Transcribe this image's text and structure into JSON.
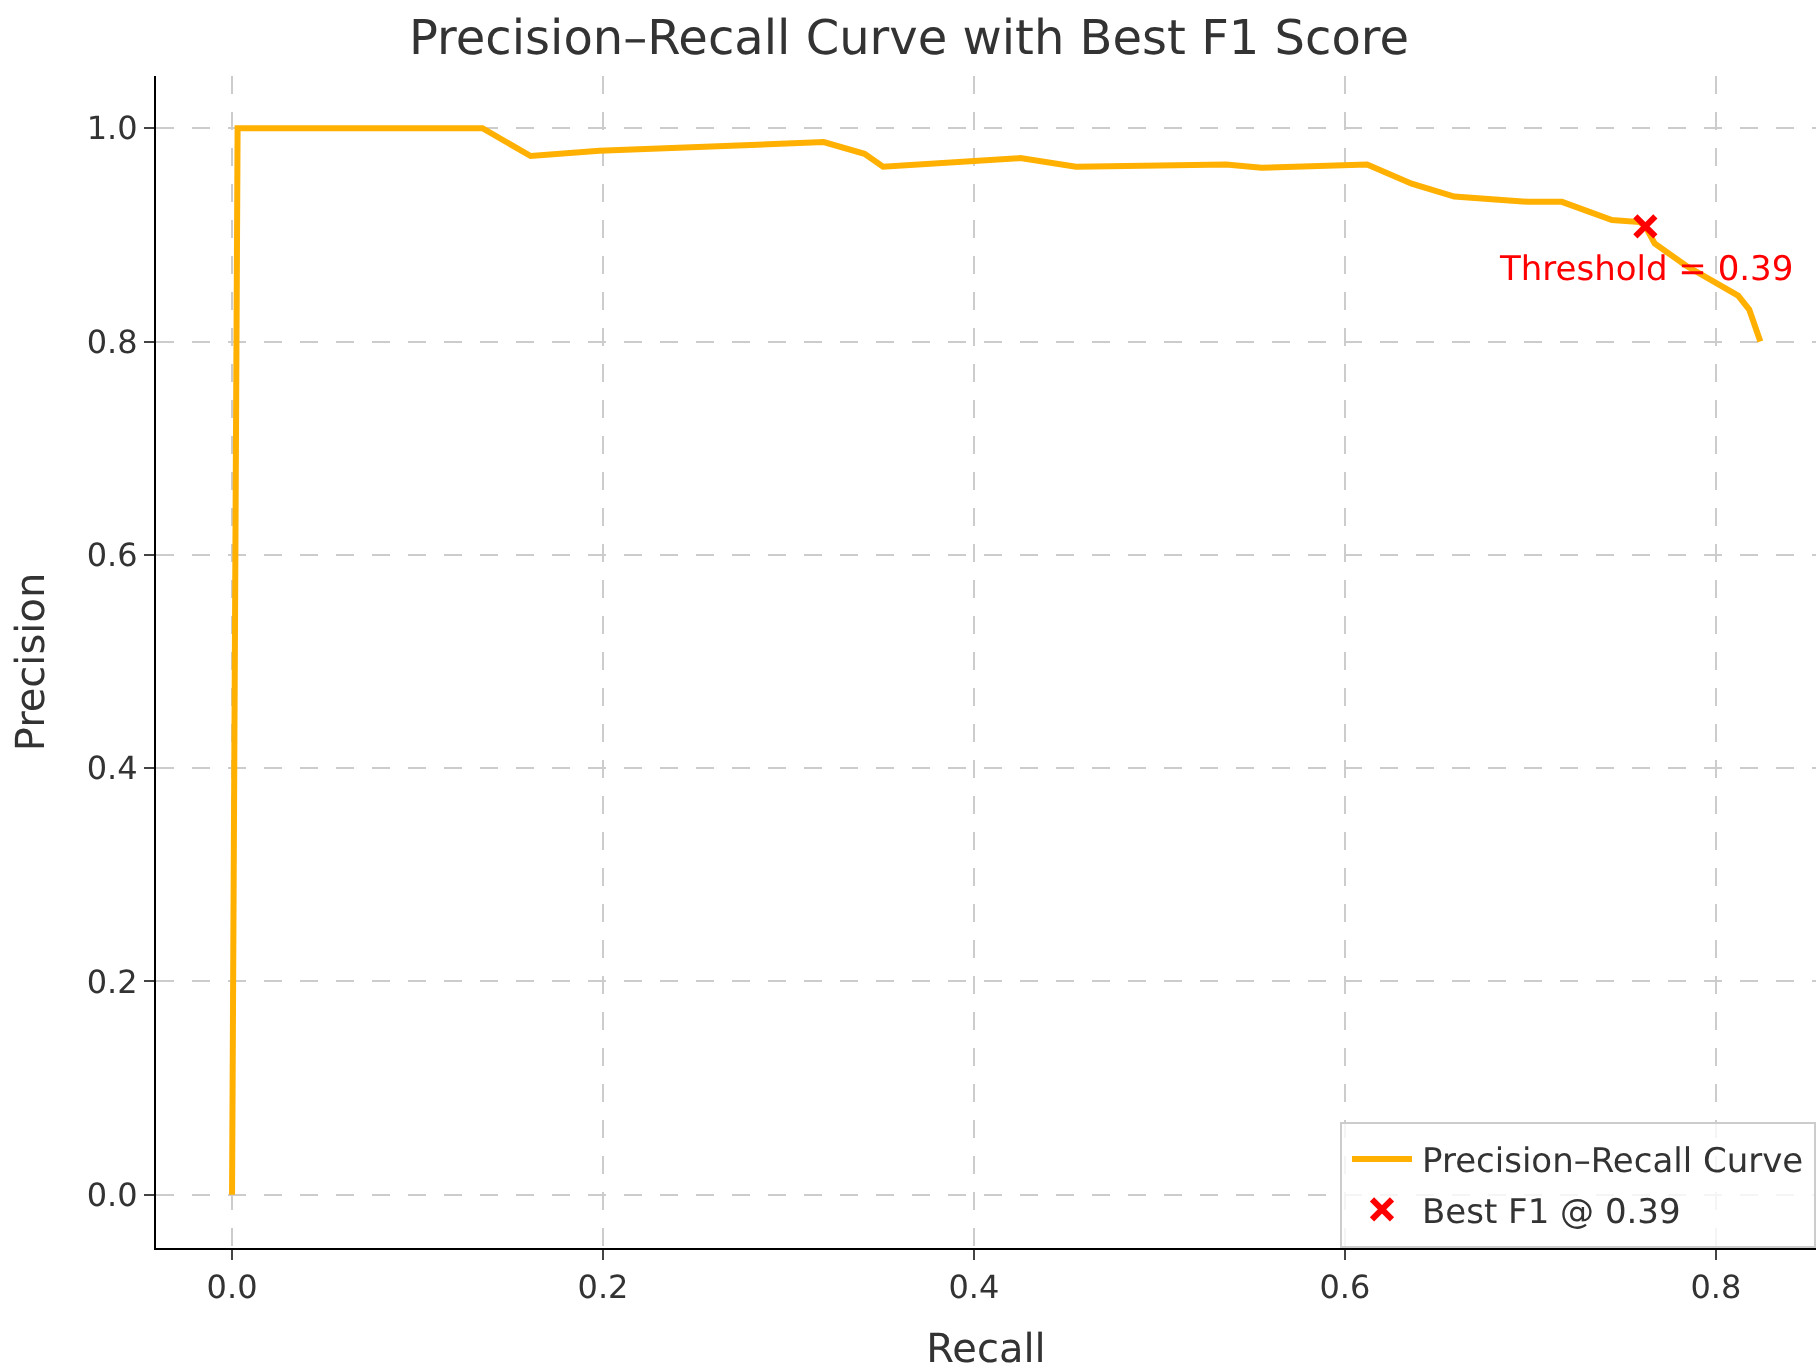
{
  "chart_data": {
    "type": "line",
    "title": "Precision–Recall Curve with Best F1 Score",
    "xlabel": "Recall",
    "ylabel": "Precision",
    "xlim": [
      -0.041,
      0.854
    ],
    "ylim": [
      -0.05,
      1.049
    ],
    "xticks": [
      {
        "value": 0,
        "label": "0.0"
      },
      0.2,
      0.4,
      0.6,
      0.8
    ],
    "yticks": [
      {
        "value": 0,
        "label": "0.0"
      },
      0.2,
      0.4,
      0.6,
      0.8,
      {
        "value": 1,
        "label": "1.0"
      }
    ],
    "grid": true,
    "legend": "bottom right",
    "line_style": "solid",
    "series": [
      {
        "name": "Precision–Recall Curve",
        "color": "#ffb000",
        "marker": "none",
        "x": [
          0,
          0.003,
          0.135,
          0.161,
          0.198,
          0.319,
          0.341,
          0.351,
          0.425,
          0.455,
          0.536,
          0.555,
          0.612,
          0.636,
          0.659,
          0.699,
          0.717,
          0.744,
          0.759,
          0.762,
          0.767,
          0.784,
          0.812,
          0.818,
          0.824
        ],
        "values": [
          0,
          1.0,
          1.0,
          0.974,
          0.979,
          0.987,
          0.976,
          0.964,
          0.972,
          0.964,
          0.966,
          0.963,
          0.966,
          0.948,
          0.936,
          0.931,
          0.931,
          0.914,
          0.912,
          0.908,
          0.892,
          0.871,
          0.843,
          0.83,
          0.8
        ]
      },
      {
        "name": "Best F1 @ 0.39",
        "color": "#ff0000",
        "type": "scatter",
        "marker": "cross",
        "x": [
          0.762
        ],
        "values": [
          0.908
        ]
      }
    ],
    "annotations": [
      {
        "text": "Threshold = 0.39",
        "x": 0.762,
        "y": 0.908
      }
    ]
  }
}
